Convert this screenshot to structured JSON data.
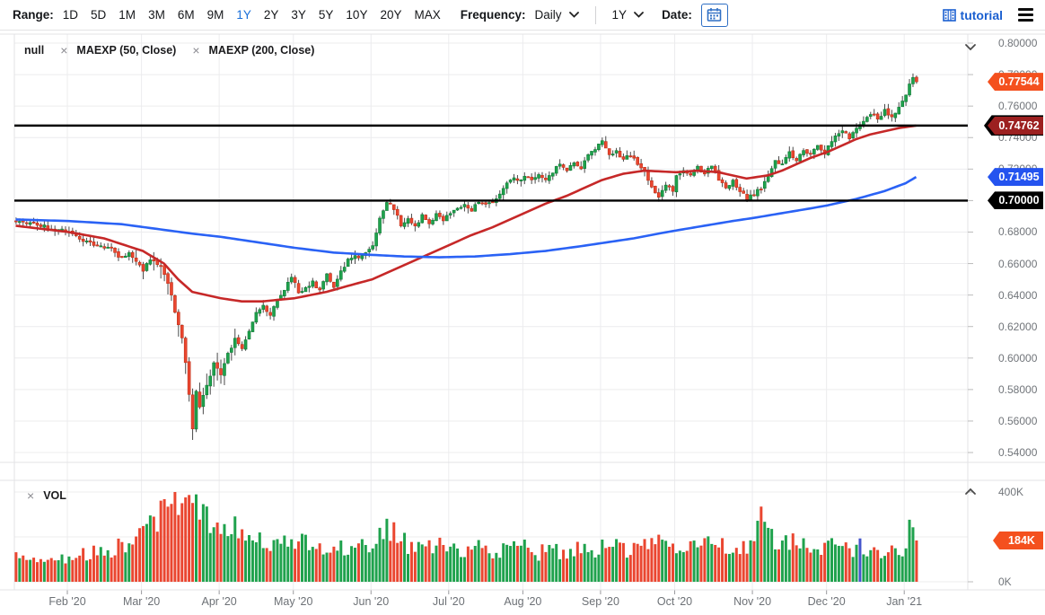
{
  "toolbar": {
    "range_label": "Range:",
    "range_options": [
      "1D",
      "5D",
      "1M",
      "3M",
      "6M",
      "9M",
      "1Y",
      "2Y",
      "3Y",
      "5Y",
      "10Y",
      "20Y",
      "MAX"
    ],
    "active_range": "1Y",
    "frequency_label": "Frequency:",
    "frequency_value": "Daily",
    "period_value": "1Y",
    "date_label": "Date:",
    "tutorial_label": "tutorial"
  },
  "main_legend": {
    "series_label": "null",
    "items": [
      {
        "close_icon": "×",
        "label": "MAEXP (50, Close)"
      },
      {
        "close_icon": "×",
        "label": "MAEXP (200, Close)"
      }
    ]
  },
  "volume_legend": {
    "close_icon": "×",
    "label": "VOL"
  },
  "price_axis": {
    "labels": [
      "0.80000",
      "0.78000",
      "0.76000",
      "0.74000",
      "0.72000",
      "0.70000",
      "0.68000",
      "0.66000",
      "0.64000",
      "0.62000",
      "0.60000",
      "0.58000",
      "0.56000",
      "0.54000"
    ],
    "values": [
      0.8,
      0.78,
      0.76,
      0.74,
      0.72,
      0.7,
      0.68,
      0.66,
      0.64,
      0.62,
      0.6,
      0.58,
      0.56,
      0.54
    ]
  },
  "volume_axis": {
    "labels": [
      "400K",
      "0K"
    ],
    "values": [
      400,
      0
    ]
  },
  "badges": [
    {
      "name": "last-price-badge",
      "text": "0.77544",
      "value": 0.77544,
      "color": "#f4501e",
      "pane": "price"
    },
    {
      "name": "hline-upper-badge",
      "text": "0.74762",
      "value": 0.74762,
      "color": "#9c2020",
      "backing": "#000000",
      "pane": "price"
    },
    {
      "name": "ma200-value-badge",
      "text": "0.71495",
      "value": 0.71495,
      "color": "#2453ef",
      "pane": "price"
    },
    {
      "name": "hline-lower-badge",
      "text": "0.70000",
      "value": 0.7,
      "color": "#000000",
      "pane": "price"
    },
    {
      "name": "volume-value-badge",
      "text": "184K",
      "value": 184,
      "color": "#f4501e",
      "pane": "volume"
    }
  ],
  "x_axis": {
    "labels": [
      "Feb '20",
      "Mar '20",
      "Apr '20",
      "May '20",
      "Jun '20",
      "Jul '20",
      "Aug '20",
      "Sep '20",
      "Oct '20",
      "Nov '20",
      "Dec '20",
      "Jan '21"
    ],
    "slots": [
      15,
      36,
      58,
      79,
      101,
      123,
      144,
      166,
      187,
      209,
      230,
      252
    ]
  },
  "chart_data": {
    "type": "candlestick",
    "bar_count": 256,
    "slot_domain": 270,
    "price_range": [
      0.54,
      0.8
    ],
    "grid_step": 0.02,
    "price_close_anchors": [
      [
        0,
        0.687
      ],
      [
        5,
        0.6855
      ],
      [
        10,
        0.6825
      ],
      [
        15,
        0.6805
      ],
      [
        19,
        0.675
      ],
      [
        23,
        0.6715
      ],
      [
        27,
        0.669
      ],
      [
        30,
        0.663
      ],
      [
        32,
        0.667
      ],
      [
        36,
        0.656
      ],
      [
        38,
        0.663
      ],
      [
        41,
        0.658
      ],
      [
        43,
        0.648
      ],
      [
        45,
        0.63
      ],
      [
        47,
        0.612
      ],
      [
        48,
        0.598
      ],
      [
        49,
        0.577
      ],
      [
        50,
        0.555
      ],
      [
        51,
        0.579
      ],
      [
        52,
        0.57
      ],
      [
        54,
        0.583
      ],
      [
        56,
        0.596
      ],
      [
        58,
        0.59
      ],
      [
        60,
        0.602
      ],
      [
        62,
        0.613
      ],
      [
        64,
        0.605
      ],
      [
        66,
        0.618
      ],
      [
        68,
        0.628
      ],
      [
        70,
        0.633
      ],
      [
        72,
        0.628
      ],
      [
        74,
        0.638
      ],
      [
        76,
        0.644
      ],
      [
        78,
        0.651
      ],
      [
        79,
        0.648
      ],
      [
        80,
        0.641
      ],
      [
        82,
        0.645
      ],
      [
        84,
        0.648
      ],
      [
        86,
        0.643
      ],
      [
        88,
        0.653
      ],
      [
        90,
        0.646
      ],
      [
        92,
        0.655
      ],
      [
        94,
        0.662
      ],
      [
        96,
        0.665
      ],
      [
        98,
        0.664
      ],
      [
        101,
        0.672
      ],
      [
        103,
        0.689
      ],
      [
        105,
        0.7
      ],
      [
        107,
        0.695
      ],
      [
        109,
        0.685
      ],
      [
        111,
        0.688
      ],
      [
        113,
        0.684
      ],
      [
        115,
        0.69
      ],
      [
        117,
        0.686
      ],
      [
        119,
        0.691
      ],
      [
        121,
        0.688
      ],
      [
        123,
        0.692
      ],
      [
        125,
        0.695
      ],
      [
        127,
        0.698
      ],
      [
        129,
        0.694
      ],
      [
        131,
        0.699
      ],
      [
        133,
        0.697
      ],
      [
        135,
        0.7
      ],
      [
        137,
        0.704
      ],
      [
        139,
        0.71
      ],
      [
        141,
        0.715
      ],
      [
        143,
        0.712
      ],
      [
        144,
        0.716
      ],
      [
        146,
        0.714
      ],
      [
        148,
        0.717
      ],
      [
        150,
        0.712
      ],
      [
        152,
        0.718
      ],
      [
        154,
        0.723
      ],
      [
        156,
        0.719
      ],
      [
        158,
        0.725
      ],
      [
        160,
        0.721
      ],
      [
        162,
        0.728
      ],
      [
        164,
        0.733
      ],
      [
        166,
        0.737
      ],
      [
        168,
        0.728
      ],
      [
        170,
        0.731
      ],
      [
        172,
        0.726
      ],
      [
        174,
        0.729
      ],
      [
        176,
        0.724
      ],
      [
        178,
        0.718
      ],
      [
        180,
        0.708
      ],
      [
        182,
        0.703
      ],
      [
        184,
        0.71
      ],
      [
        186,
        0.706
      ],
      [
        187,
        0.716
      ],
      [
        189,
        0.719
      ],
      [
        191,
        0.715
      ],
      [
        193,
        0.721
      ],
      [
        195,
        0.717
      ],
      [
        197,
        0.722
      ],
      [
        199,
        0.714
      ],
      [
        201,
        0.709
      ],
      [
        203,
        0.712
      ],
      [
        205,
        0.706
      ],
      [
        207,
        0.701
      ],
      [
        209,
        0.704
      ],
      [
        211,
        0.708
      ],
      [
        213,
        0.715
      ],
      [
        215,
        0.726
      ],
      [
        217,
        0.723
      ],
      [
        219,
        0.73
      ],
      [
        221,
        0.726
      ],
      [
        223,
        0.732
      ],
      [
        225,
        0.729
      ],
      [
        227,
        0.734
      ],
      [
        229,
        0.73
      ],
      [
        230,
        0.736
      ],
      [
        232,
        0.741
      ],
      [
        234,
        0.744
      ],
      [
        236,
        0.74
      ],
      [
        238,
        0.746
      ],
      [
        240,
        0.75
      ],
      [
        242,
        0.755
      ],
      [
        244,
        0.752
      ],
      [
        246,
        0.757
      ],
      [
        248,
        0.753
      ],
      [
        250,
        0.759
      ],
      [
        252,
        0.768
      ],
      [
        253,
        0.774
      ],
      [
        254,
        0.779
      ],
      [
        255,
        0.77544
      ]
    ],
    "crash_low": {
      "slot": 50,
      "low": 0.548,
      "close": 0.555
    },
    "last_close": 0.77544,
    "ma50": {
      "label": "MAEXP (50, Close)",
      "color": "#c62828",
      "last": 0.74762,
      "anchors": [
        [
          0,
          0.684
        ],
        [
          15,
          0.68
        ],
        [
          25,
          0.676
        ],
        [
          36,
          0.668
        ],
        [
          42,
          0.66
        ],
        [
          46,
          0.65
        ],
        [
          50,
          0.642
        ],
        [
          58,
          0.638
        ],
        [
          64,
          0.636
        ],
        [
          70,
          0.636
        ],
        [
          79,
          0.638
        ],
        [
          88,
          0.642
        ],
        [
          96,
          0.647
        ],
        [
          101,
          0.65
        ],
        [
          107,
          0.656
        ],
        [
          113,
          0.662
        ],
        [
          119,
          0.668
        ],
        [
          123,
          0.672
        ],
        [
          129,
          0.678
        ],
        [
          135,
          0.683
        ],
        [
          141,
          0.689
        ],
        [
          144,
          0.692
        ],
        [
          150,
          0.698
        ],
        [
          156,
          0.703
        ],
        [
          162,
          0.709
        ],
        [
          166,
          0.713
        ],
        [
          172,
          0.717
        ],
        [
          178,
          0.719
        ],
        [
          187,
          0.718
        ],
        [
          193,
          0.719
        ],
        [
          199,
          0.718
        ],
        [
          203,
          0.716
        ],
        [
          207,
          0.714
        ],
        [
          213,
          0.716
        ],
        [
          217,
          0.719
        ],
        [
          221,
          0.723
        ],
        [
          225,
          0.727
        ],
        [
          230,
          0.731
        ],
        [
          234,
          0.735
        ],
        [
          238,
          0.739
        ],
        [
          242,
          0.742
        ],
        [
          246,
          0.744
        ],
        [
          250,
          0.746
        ],
        [
          255,
          0.74762
        ]
      ]
    },
    "ma200": {
      "label": "MAEXP (200, Close)",
      "color": "#2a62f5",
      "last": 0.71495,
      "anchors": [
        [
          0,
          0.688
        ],
        [
          15,
          0.687
        ],
        [
          30,
          0.685
        ],
        [
          40,
          0.682
        ],
        [
          50,
          0.679
        ],
        [
          58,
          0.677
        ],
        [
          70,
          0.673
        ],
        [
          79,
          0.67
        ],
        [
          90,
          0.667
        ],
        [
          101,
          0.6655
        ],
        [
          110,
          0.6645
        ],
        [
          120,
          0.664
        ],
        [
          130,
          0.6645
        ],
        [
          140,
          0.666
        ],
        [
          150,
          0.668
        ],
        [
          160,
          0.671
        ],
        [
          166,
          0.673
        ],
        [
          175,
          0.676
        ],
        [
          182,
          0.679
        ],
        [
          187,
          0.681
        ],
        [
          195,
          0.684
        ],
        [
          203,
          0.687
        ],
        [
          209,
          0.689
        ],
        [
          217,
          0.692
        ],
        [
          225,
          0.695
        ],
        [
          230,
          0.697
        ],
        [
          238,
          0.701
        ],
        [
          246,
          0.706
        ],
        [
          252,
          0.711
        ],
        [
          255,
          0.71495
        ]
      ]
    },
    "hlines": [
      0.74762,
      0.7
    ],
    "volume": {
      "axis_max": 400,
      "last": 184,
      "spike_slot": 211,
      "spike_value": 335,
      "neutral_slot": 239,
      "anchors": [
        [
          0,
          110
        ],
        [
          8,
          95
        ],
        [
          15,
          105
        ],
        [
          22,
          130
        ],
        [
          27,
          150
        ],
        [
          32,
          180
        ],
        [
          36,
          210
        ],
        [
          39,
          260
        ],
        [
          42,
          320
        ],
        [
          44,
          360
        ],
        [
          46,
          390
        ],
        [
          48,
          360
        ],
        [
          50,
          395
        ],
        [
          52,
          330
        ],
        [
          54,
          300
        ],
        [
          56,
          260
        ],
        [
          58,
          285
        ],
        [
          60,
          250
        ],
        [
          63,
          220
        ],
        [
          66,
          200
        ],
        [
          70,
          185
        ],
        [
          74,
          190
        ],
        [
          79,
          165
        ],
        [
          83,
          175
        ],
        [
          88,
          150
        ],
        [
          92,
          160
        ],
        [
          96,
          140
        ],
        [
          101,
          170
        ],
        [
          104,
          235
        ],
        [
          106,
          240
        ],
        [
          108,
          200
        ],
        [
          111,
          170
        ],
        [
          115,
          150
        ],
        [
          119,
          160
        ],
        [
          123,
          150
        ],
        [
          127,
          140
        ],
        [
          131,
          150
        ],
        [
          135,
          135
        ],
        [
          139,
          145
        ],
        [
          144,
          150
        ],
        [
          148,
          130
        ],
        [
          152,
          140
        ],
        [
          156,
          130
        ],
        [
          160,
          150
        ],
        [
          164,
          140
        ],
        [
          166,
          160
        ],
        [
          170,
          150
        ],
        [
          174,
          140
        ],
        [
          178,
          160
        ],
        [
          182,
          170
        ],
        [
          187,
          160
        ],
        [
          191,
          150
        ],
        [
          195,
          160
        ],
        [
          199,
          170
        ],
        [
          203,
          150
        ],
        [
          207,
          140
        ],
        [
          209,
          150
        ],
        [
          211,
          335
        ],
        [
          213,
          250
        ],
        [
          215,
          200
        ],
        [
          218,
          180
        ],
        [
          221,
          165
        ],
        [
          225,
          150
        ],
        [
          230,
          160
        ],
        [
          233,
          140
        ],
        [
          236,
          150
        ],
        [
          239,
          160
        ],
        [
          242,
          130
        ],
        [
          245,
          140
        ],
        [
          248,
          150
        ],
        [
          250,
          130
        ],
        [
          252,
          160
        ],
        [
          253,
          230
        ],
        [
          254,
          200
        ],
        [
          255,
          184
        ]
      ]
    },
    "colors": {
      "up": "#1fa24d",
      "up_border": "#0c7a33",
      "down": "#ea4630",
      "down_border": "#bf2f16",
      "wick": "#4a4a4a",
      "neutral_bar": "#4455cc",
      "grid": "#ececee",
      "border": "#e3e3e5",
      "axis_text": "#71757a",
      "hline": "#000000"
    }
  }
}
